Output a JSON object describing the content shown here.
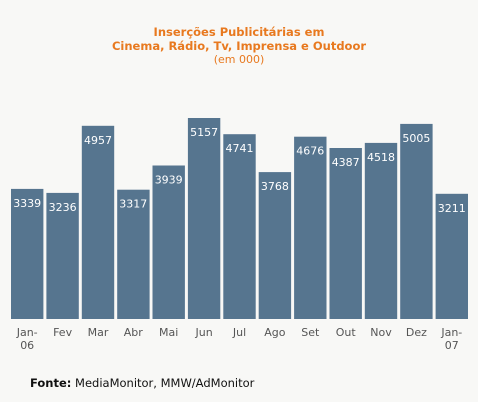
{
  "chart_data": {
    "type": "bar",
    "title_line1": "Inserções Publicitárias em",
    "title_line2": "Cinema, Rádio, Tv, Imprensa e Outdoor",
    "subtitle": "(em 000)",
    "categories": [
      [
        "Jan-",
        "06"
      ],
      [
        "Fev"
      ],
      [
        "Mar"
      ],
      [
        "Abr"
      ],
      [
        "Mai"
      ],
      [
        "Jun"
      ],
      [
        "Jul"
      ],
      [
        "Ago"
      ],
      [
        "Set"
      ],
      [
        "Out"
      ],
      [
        "Nov"
      ],
      [
        "Dez"
      ],
      [
        "Jan-",
        "07"
      ]
    ],
    "values": [
      3339,
      3236,
      4957,
      3317,
      3939,
      5157,
      4741,
      3768,
      4676,
      4387,
      4518,
      5005,
      3211
    ],
    "bar_color": "#56758f",
    "ylim": [
      0,
      5400
    ],
    "grid": false,
    "legend": "none"
  },
  "source": {
    "label": "Fonte:",
    "text": "MediaMonitor, MMW/AdMonitor"
  }
}
